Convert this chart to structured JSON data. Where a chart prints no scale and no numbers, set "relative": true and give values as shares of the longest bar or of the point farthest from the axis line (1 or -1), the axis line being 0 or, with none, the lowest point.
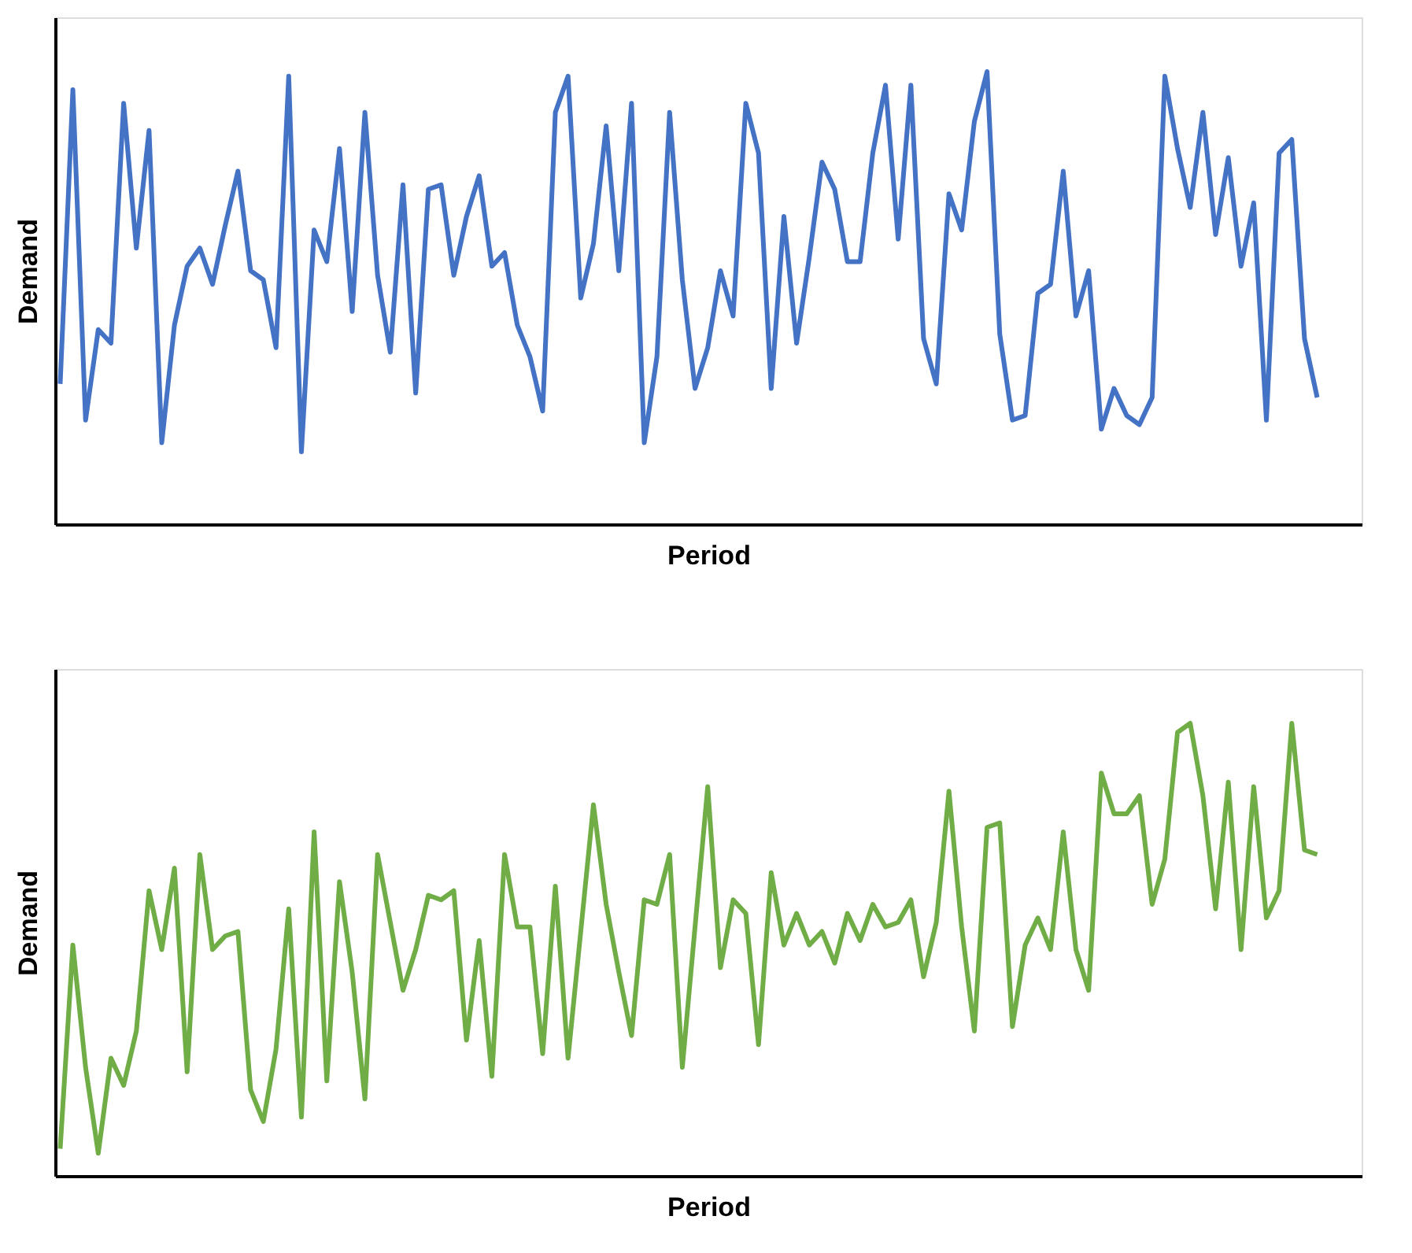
{
  "chart_data": [
    {
      "type": "line",
      "xlabel": "Period",
      "ylabel": "Demand",
      "relative": true,
      "tick_labels": false,
      "grid": false,
      "marker": "none",
      "line_style": "solid",
      "categories": [
        null,
        null,
        null,
        null,
        null,
        null,
        null,
        null,
        null,
        null,
        null,
        null,
        null,
        null,
        null,
        null,
        null,
        null,
        null,
        null,
        null,
        null,
        null,
        null,
        null,
        null,
        null,
        null,
        null,
        null,
        null,
        null,
        null,
        null,
        null,
        null,
        null,
        null,
        null,
        null,
        null,
        null,
        null,
        null,
        null,
        null,
        null,
        null,
        null,
        null,
        null,
        null,
        null,
        null,
        null,
        null,
        null,
        null,
        null,
        null,
        null,
        null,
        null,
        null,
        null,
        null,
        null,
        null,
        null,
        null,
        null,
        null,
        null,
        null,
        null,
        null,
        null,
        null,
        null,
        null,
        null,
        null,
        null,
        null,
        null,
        null,
        null,
        null,
        null,
        null,
        null,
        null,
        null,
        null,
        null,
        null,
        null,
        null,
        null,
        null
      ],
      "series": [
        {
          "color": "#4472c4",
          "values": [
            0.31,
            0.96,
            0.23,
            0.43,
            0.4,
            0.93,
            0.61,
            0.87,
            0.18,
            0.44,
            0.57,
            0.61,
            0.53,
            0.66,
            0.78,
            0.56,
            0.54,
            0.39,
            0.99,
            0.16,
            0.65,
            0.58,
            0.83,
            0.47,
            0.91,
            0.55,
            0.38,
            0.75,
            0.29,
            0.74,
            0.75,
            0.55,
            0.68,
            0.77,
            0.57,
            0.6,
            0.44,
            0.37,
            0.25,
            0.91,
            0.99,
            0.5,
            0.62,
            0.88,
            0.56,
            0.93,
            0.18,
            0.37,
            0.91,
            0.54,
            0.3,
            0.39,
            0.56,
            0.46,
            0.93,
            0.82,
            0.3,
            0.68,
            0.4,
            0.59,
            0.8,
            0.74,
            0.58,
            0.58,
            0.82,
            0.97,
            0.63,
            0.97,
            0.41,
            0.31,
            0.73,
            0.65,
            0.89,
            1.0,
            0.42,
            0.23,
            0.24,
            0.51,
            0.53,
            0.78,
            0.46,
            0.56,
            0.21,
            0.3,
            0.24,
            0.22,
            0.28,
            0.99,
            0.83,
            0.7,
            0.91,
            0.64,
            0.81,
            0.57,
            0.71,
            0.23,
            0.82,
            0.85,
            0.41,
            0.28
          ]
        }
      ]
    },
    {
      "type": "line",
      "xlabel": "Period",
      "ylabel": "Demand",
      "relative": true,
      "tick_labels": false,
      "grid": false,
      "marker": "none",
      "line_style": "solid",
      "categories": [
        null,
        null,
        null,
        null,
        null,
        null,
        null,
        null,
        null,
        null,
        null,
        null,
        null,
        null,
        null,
        null,
        null,
        null,
        null,
        null,
        null,
        null,
        null,
        null,
        null,
        null,
        null,
        null,
        null,
        null,
        null,
        null,
        null,
        null,
        null,
        null,
        null,
        null,
        null,
        null,
        null,
        null,
        null,
        null,
        null,
        null,
        null,
        null,
        null,
        null,
        null,
        null,
        null,
        null,
        null,
        null,
        null,
        null,
        null,
        null,
        null,
        null,
        null,
        null,
        null,
        null,
        null,
        null,
        null,
        null,
        null,
        null,
        null,
        null,
        null,
        null,
        null,
        null,
        null,
        null,
        null,
        null,
        null,
        null,
        null,
        null,
        null,
        null,
        null,
        null,
        null,
        null,
        null,
        null,
        null,
        null,
        null,
        null,
        null,
        null
      ],
      "series": [
        {
          "color": "#70ad47",
          "values": [
            0.06,
            0.51,
            0.24,
            0.05,
            0.26,
            0.2,
            0.32,
            0.63,
            0.5,
            0.68,
            0.23,
            0.71,
            0.5,
            0.53,
            0.54,
            0.19,
            0.12,
            0.28,
            0.59,
            0.13,
            0.76,
            0.21,
            0.65,
            0.45,
            0.17,
            0.71,
            0.56,
            0.41,
            0.5,
            0.62,
            0.61,
            0.63,
            0.3,
            0.52,
            0.22,
            0.71,
            0.55,
            0.55,
            0.27,
            0.64,
            0.26,
            0.54,
            0.82,
            0.6,
            0.45,
            0.31,
            0.61,
            0.6,
            0.71,
            0.24,
            0.55,
            0.86,
            0.46,
            0.61,
            0.58,
            0.29,
            0.67,
            0.51,
            0.58,
            0.51,
            0.54,
            0.47,
            0.58,
            0.52,
            0.6,
            0.55,
            0.56,
            0.61,
            0.44,
            0.56,
            0.85,
            0.55,
            0.32,
            0.77,
            0.78,
            0.33,
            0.51,
            0.57,
            0.5,
            0.76,
            0.5,
            0.41,
            0.89,
            0.8,
            0.8,
            0.84,
            0.6,
            0.7,
            0.98,
            1.0,
            0.84,
            0.59,
            0.87,
            0.5,
            0.86,
            0.57,
            0.63,
            1.0,
            0.72,
            0.71
          ]
        }
      ]
    }
  ]
}
